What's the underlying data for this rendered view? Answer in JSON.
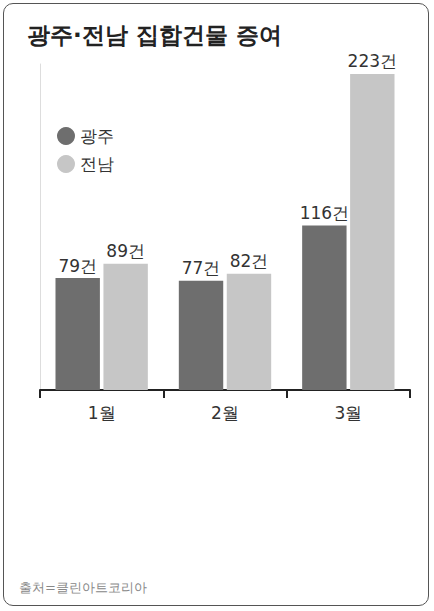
{
  "chart_data": {
    "type": "bar",
    "title": "광주·전남 집합건물 증여",
    "categories": [
      "1월",
      "2월",
      "3월"
    ],
    "series": [
      {
        "name": "광주",
        "color": "#6e6e6e",
        "values": [
          79,
          77,
          116
        ],
        "value_labels": [
          "79건",
          "77건",
          "116건"
        ]
      },
      {
        "name": "전남",
        "color": "#c6c6c6",
        "values": [
          89,
          82,
          223
        ],
        "value_labels": [
          "89건",
          "82건",
          "223건"
        ]
      }
    ],
    "ylim": [
      0,
      230
    ],
    "tick_labels": "x",
    "grid": false,
    "legend": "left",
    "data_labels": true,
    "source": "출처=클린아트코리아"
  }
}
